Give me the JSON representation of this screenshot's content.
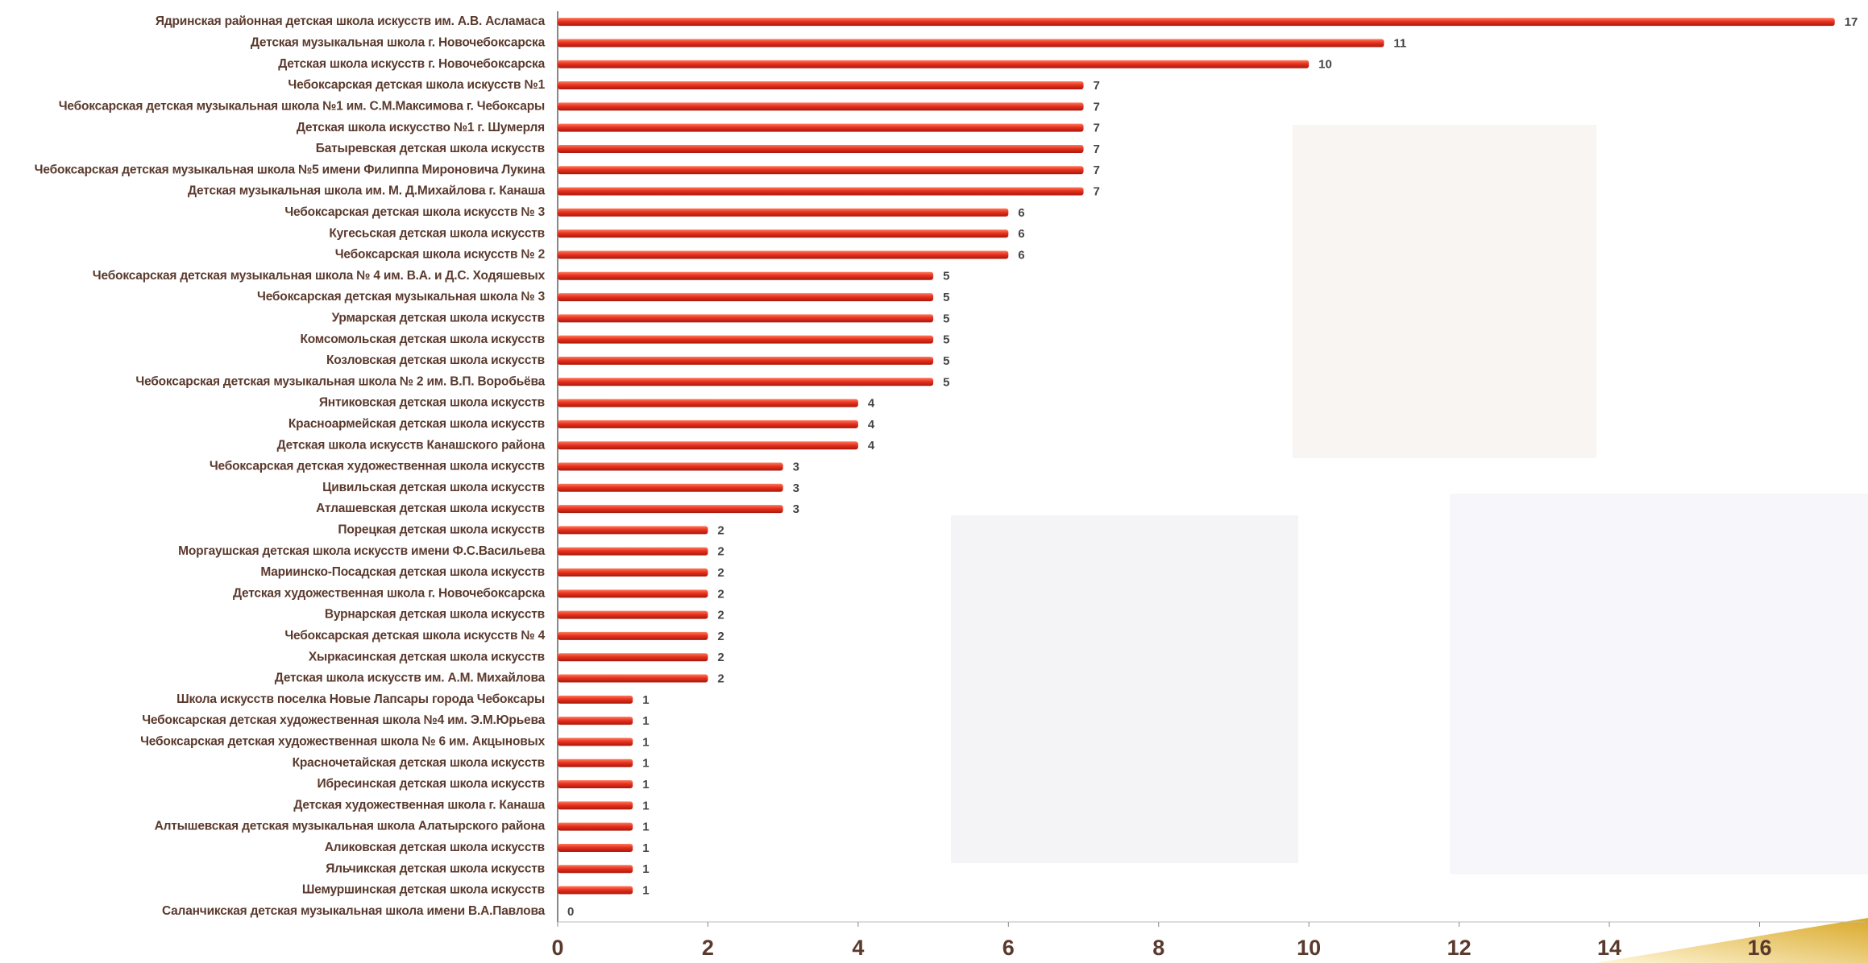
{
  "chart_data": {
    "type": "barh",
    "categories": [
      "Ядринская районная детская школа искусств им. А.В. Асламаса",
      "Детская музыкальная школа г. Новочебоксарска",
      "Детская школа искусств г. Новочебоксарска",
      "Чебоксарская детская школа искусств №1",
      "Чебоксарская детская музыкальная школа №1 им. С.М.Максимова г. Чебоксары",
      "Детская школа искусство №1 г. Шумерля",
      "Батыревская детская школа искусств",
      "Чебоксарская детская музыкальная школа №5 имени Филиппа Мироновича Лукина",
      "Детская музыкальная школа им. М. Д.Михайлова г. Канаша",
      "Чебоксарская детская школа искусств № 3",
      "Кугесьская детская школа искусств",
      "Чебоксарская школа искусств № 2",
      "Чебоксарская детская музыкальная школа № 4 им. В.А. и Д.С. Ходяшевых",
      "Чебоксарская детская музыкальная школа № 3",
      "Урмарская детская школа искусств",
      "Комсомольская детская школа искусств",
      "Козловская детская школа искусств",
      "Чебоксарская детская музыкальная школа № 2 им. В.П. Воробьёва",
      "Янтиковская детская школа искусств",
      "Красноармейская детская школа искусств",
      "Детская школа искусств Канашского района",
      "Чебоксарская детская художественная школа искусств",
      "Цивильская детская школа искусств",
      "Атлашевская детская школа искусств",
      "Порецкая детская школа искусств",
      "Моргаушская детская школа искусств имени Ф.С.Васильева",
      "Мариинско-Посадская детская школа искусств",
      "Детская художественная школа г. Новочебоксарска",
      "Вурнарская детская школа искусств",
      "Чебоксарская детская школа искусств № 4",
      "Хыркасинская детская школа искусств",
      "Детская школа искусств им. А.М. Михайлова",
      "Школа искусств поселка Новые Лапсары города Чебоксары",
      "Чебоксарская детская художественная школа №4 им. Э.М.Юрьева",
      "Чебоксарская детская художественная школа № 6 им. Акцыновых",
      "Красночетайская детская школа искусств",
      "Ибресинская детская школа искусств",
      "Детская художественная школа г. Канаша",
      "Алтышевская детская музыкальная школа Алатырского района",
      "Аликовская детская школа искусств",
      "Яльчикская детская школа искусств",
      "Шемуршинская детская школа искусств",
      "Саланчикская детская музыкальная школа имени В.А.Павлова"
    ],
    "values": [
      17,
      11,
      10,
      7,
      7,
      7,
      7,
      7,
      7,
      6,
      6,
      6,
      5,
      5,
      5,
      5,
      5,
      5,
      4,
      4,
      4,
      3,
      3,
      3,
      2,
      2,
      2,
      2,
      2,
      2,
      2,
      2,
      1,
      1,
      1,
      1,
      1,
      1,
      1,
      1,
      1,
      1,
      0
    ],
    "color": "#e8321e",
    "xlim": [
      0,
      17.4
    ],
    "xticks": [
      0,
      2,
      4,
      6,
      8,
      10,
      12,
      14,
      16
    ]
  }
}
